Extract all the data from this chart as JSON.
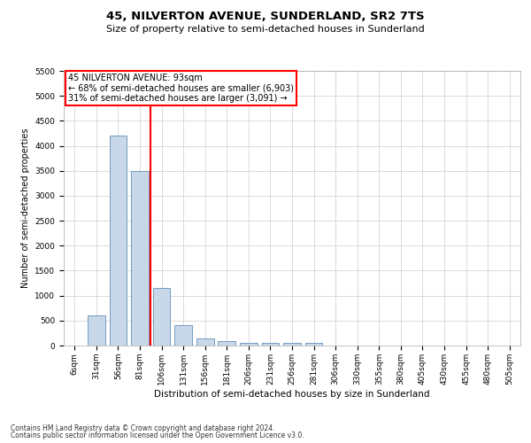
{
  "title1": "45, NILVERTON AVENUE, SUNDERLAND, SR2 7TS",
  "title2": "Size of property relative to semi-detached houses in Sunderland",
  "xlabel": "Distribution of semi-detached houses by size in Sunderland",
  "ylabel": "Number of semi-detached properties",
  "footnote1": "Contains HM Land Registry data © Crown copyright and database right 2024.",
  "footnote2": "Contains public sector information licensed under the Open Government Licence v3.0.",
  "categories": [
    "6sqm",
    "31sqm",
    "56sqm",
    "81sqm",
    "106sqm",
    "131sqm",
    "156sqm",
    "181sqm",
    "206sqm",
    "231sqm",
    "256sqm",
    "281sqm",
    "306sqm",
    "330sqm",
    "355sqm",
    "380sqm",
    "405sqm",
    "430sqm",
    "455sqm",
    "480sqm",
    "505sqm"
  ],
  "values": [
    0,
    600,
    4200,
    3500,
    1150,
    400,
    150,
    80,
    60,
    50,
    50,
    50,
    0,
    0,
    0,
    0,
    0,
    0,
    0,
    0,
    0
  ],
  "bar_color": "#c8d8e8",
  "bar_edge_color": "#6090b8",
  "red_line_x": 3.5,
  "annotation_title": "45 NILVERTON AVENUE: 93sqm",
  "annotation_line1": "← 68% of semi-detached houses are smaller (6,903)",
  "annotation_line2": "31% of semi-detached houses are larger (3,091) →",
  "ylim": [
    0,
    5500
  ],
  "yticks": [
    0,
    500,
    1000,
    1500,
    2000,
    2500,
    3000,
    3500,
    4000,
    4500,
    5000,
    5500
  ],
  "background_color": "#ffffff",
  "grid_color": "#cccccc",
  "title1_fontsize": 9.5,
  "title2_fontsize": 8.0,
  "xlabel_fontsize": 7.5,
  "ylabel_fontsize": 7.0,
  "tick_fontsize": 6.5,
  "annot_fontsize": 7.0,
  "footnote_fontsize": 5.5
}
